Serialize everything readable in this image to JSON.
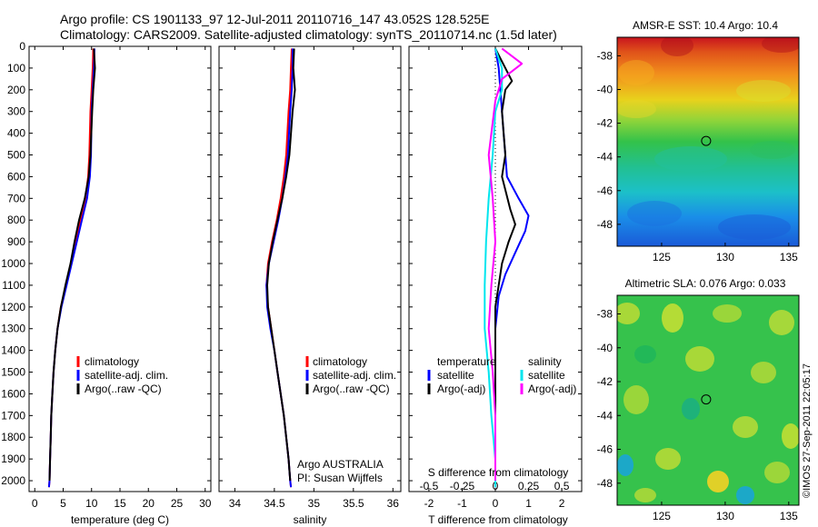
{
  "header": {
    "line1": "Argo profile: CS 1901133_97 12-Jul-2011 20110716_147 43.052S 128.525E",
    "line2": "Climatology: CARS2009. Satellite-adjusted climatology: synTS_20110714.nc (1.5d later)"
  },
  "credit": "©IMOS 27-Sep-2011 22:05:17",
  "colors": {
    "climatology": "#ff0000",
    "satellite": "#0000ff",
    "argo": "#000000",
    "sal_satellite": "#00e5ee",
    "sal_argo": "#ff00ff"
  },
  "chart_data": [
    {
      "type": "line",
      "panel": "temperature",
      "xlabel": "temperature (deg C)",
      "ylabel": "",
      "xlim": [
        -1,
        31
      ],
      "ylim": [
        2050,
        0
      ],
      "xticks": [
        "0",
        "5",
        "10",
        "15",
        "20",
        "25",
        "30"
      ],
      "xtick_values": [
        0,
        5,
        10,
        15,
        20,
        25,
        30
      ],
      "yticks": [
        "0",
        "100",
        "200",
        "300",
        "400",
        "500",
        "600",
        "700",
        "800",
        "900",
        "1000",
        "1100",
        "1200",
        "1300",
        "1400",
        "1500",
        "1600",
        "1700",
        "1800",
        "1900",
        "2000"
      ],
      "ytick_values": [
        0,
        100,
        200,
        300,
        400,
        500,
        600,
        700,
        800,
        900,
        1000,
        1100,
        1200,
        1300,
        1400,
        1500,
        1600,
        1700,
        1800,
        1900,
        2000
      ],
      "legend": [
        {
          "label": "climatology",
          "color": "#ff0000"
        },
        {
          "label": "satellite-adj. clim.",
          "color": "#0000ff"
        },
        {
          "label": "Argo(..raw -QC)",
          "color": "#000000"
        }
      ],
      "series": [
        {
          "name": "climatology",
          "color": "#ff0000",
          "points": [
            [
              10.3,
              10
            ],
            [
              10.2,
              100
            ],
            [
              10.0,
              200
            ],
            [
              9.8,
              300
            ],
            [
              9.6,
              500
            ],
            [
              9.4,
              600
            ],
            [
              8.9,
              700
            ],
            [
              8.0,
              800
            ],
            [
              7.2,
              900
            ],
            [
              6.4,
              1000
            ],
            [
              5.5,
              1100
            ],
            [
              4.6,
              1200
            ],
            [
              4.0,
              1300
            ],
            [
              3.6,
              1400
            ],
            [
              3.3,
              1500
            ],
            [
              3.1,
              1600
            ],
            [
              2.9,
              1700
            ],
            [
              2.8,
              1800
            ],
            [
              2.7,
              1900
            ],
            [
              2.6,
              2000
            ],
            [
              2.5,
              2030
            ]
          ]
        },
        {
          "name": "satellite-adj. clim.",
          "color": "#0000ff",
          "points": [
            [
              10.5,
              10
            ],
            [
              10.4,
              100
            ],
            [
              10.2,
              200
            ],
            [
              10.0,
              300
            ],
            [
              9.9,
              500
            ],
            [
              9.7,
              600
            ],
            [
              9.2,
              700
            ],
            [
              8.3,
              800
            ],
            [
              7.4,
              900
            ],
            [
              6.5,
              1000
            ],
            [
              5.6,
              1100
            ],
            [
              4.7,
              1200
            ],
            [
              4.0,
              1300
            ],
            [
              3.6,
              1400
            ],
            [
              3.3,
              1500
            ],
            [
              3.1,
              1600
            ],
            [
              2.9,
              1700
            ],
            [
              2.8,
              1800
            ],
            [
              2.7,
              1900
            ],
            [
              2.6,
              2000
            ],
            [
              2.5,
              2030
            ]
          ]
        },
        {
          "name": "Argo(..raw -QC)",
          "color": "#000000",
          "points": [
            [
              10.4,
              10
            ],
            [
              10.6,
              100
            ],
            [
              10.3,
              200
            ],
            [
              10.1,
              300
            ],
            [
              9.8,
              500
            ],
            [
              9.5,
              600
            ],
            [
              8.8,
              700
            ],
            [
              7.8,
              800
            ],
            [
              7.0,
              900
            ],
            [
              6.3,
              1000
            ],
            [
              5.4,
              1100
            ],
            [
              4.6,
              1200
            ],
            [
              4.0,
              1300
            ],
            [
              3.6,
              1400
            ],
            [
              3.3,
              1500
            ],
            [
              3.1,
              1600
            ],
            [
              2.9,
              1700
            ],
            [
              2.8,
              1800
            ],
            [
              2.7,
              1900
            ],
            [
              2.6,
              2000
            ]
          ]
        }
      ]
    },
    {
      "type": "line",
      "panel": "salinity",
      "xlabel": "salinity",
      "ylabel": "",
      "xlim": [
        33.8,
        36.1
      ],
      "ylim": [
        2050,
        0
      ],
      "xticks": [
        "34",
        "34.5",
        "35",
        "35.5",
        "36"
      ],
      "xtick_values": [
        34,
        34.5,
        35,
        35.5,
        36
      ],
      "legend": [
        {
          "label": "climatology",
          "color": "#ff0000"
        },
        {
          "label": "satellite-adj. clim.",
          "color": "#0000ff"
        },
        {
          "label": "Argo(..raw -QC)",
          "color": "#000000"
        }
      ],
      "annotation": [
        "Argo AUSTRALIA",
        "PI: Susan Wijffels"
      ],
      "series": [
        {
          "name": "climatology",
          "color": "#ff0000",
          "points": [
            [
              34.72,
              10
            ],
            [
              34.71,
              100
            ],
            [
              34.7,
              200
            ],
            [
              34.68,
              300
            ],
            [
              34.65,
              500
            ],
            [
              34.62,
              600
            ],
            [
              34.58,
              700
            ],
            [
              34.53,
              800
            ],
            [
              34.47,
              900
            ],
            [
              34.42,
              1000
            ],
            [
              34.4,
              1100
            ],
            [
              34.42,
              1200
            ],
            [
              34.46,
              1300
            ],
            [
              34.5,
              1400
            ],
            [
              34.54,
              1500
            ],
            [
              34.58,
              1600
            ],
            [
              34.62,
              1700
            ],
            [
              34.65,
              1800
            ],
            [
              34.68,
              1900
            ],
            [
              34.7,
              2000
            ],
            [
              34.71,
              2030
            ]
          ]
        },
        {
          "name": "satellite-adj. clim.",
          "color": "#0000ff",
          "points": [
            [
              34.73,
              10
            ],
            [
              34.73,
              100
            ],
            [
              34.72,
              200
            ],
            [
              34.7,
              300
            ],
            [
              34.67,
              500
            ],
            [
              34.64,
              600
            ],
            [
              34.6,
              700
            ],
            [
              34.55,
              800
            ],
            [
              34.49,
              900
            ],
            [
              34.43,
              1000
            ],
            [
              34.4,
              1100
            ],
            [
              34.41,
              1200
            ],
            [
              34.45,
              1300
            ],
            [
              34.5,
              1400
            ],
            [
              34.54,
              1500
            ],
            [
              34.58,
              1600
            ],
            [
              34.62,
              1700
            ],
            [
              34.65,
              1800
            ],
            [
              34.68,
              1900
            ],
            [
              34.7,
              2000
            ],
            [
              34.71,
              2030
            ]
          ]
        },
        {
          "name": "Argo(..raw -QC)",
          "color": "#000000",
          "points": [
            [
              34.75,
              10
            ],
            [
              34.74,
              100
            ],
            [
              34.76,
              200
            ],
            [
              34.73,
              300
            ],
            [
              34.69,
              500
            ],
            [
              34.65,
              600
            ],
            [
              34.6,
              700
            ],
            [
              34.54,
              800
            ],
            [
              34.48,
              900
            ],
            [
              34.43,
              1000
            ],
            [
              34.41,
              1100
            ],
            [
              34.42,
              1200
            ],
            [
              34.46,
              1300
            ],
            [
              34.5,
              1400
            ],
            [
              34.54,
              1500
            ],
            [
              34.58,
              1600
            ],
            [
              34.62,
              1700
            ],
            [
              34.65,
              1800
            ],
            [
              34.68,
              1900
            ],
            [
              34.7,
              2000
            ]
          ]
        }
      ]
    },
    {
      "type": "line",
      "panel": "difference",
      "xlabel": "T difference from climatology",
      "x2label": "S difference from climatology",
      "xlim": [
        -2.6,
        2.6
      ],
      "ylim": [
        2050,
        0
      ],
      "xticks": [
        "-2",
        "-1",
        "0",
        "1",
        "2"
      ],
      "xtick_values": [
        -2,
        -1,
        0,
        1,
        2
      ],
      "x2ticks": [
        "-0.5",
        "-0.25",
        "0",
        "0.25",
        "0.5"
      ],
      "x2tick_values": [
        -0.5,
        -0.25,
        0,
        0.25,
        0.5
      ],
      "legend_headers": [
        "temperature",
        "salinity"
      ],
      "legend": [
        {
          "label": "satellite",
          "color": "#0000ff",
          "column": 0
        },
        {
          "label": "Argo(-adj)",
          "color": "#000000",
          "column": 0
        },
        {
          "label": "satellite",
          "color": "#00e5ee",
          "column": 1
        },
        {
          "label": "Argo(-adj)",
          "color": "#ff00ff",
          "column": 1
        }
      ],
      "series": [
        {
          "name": "temperature satellite",
          "color": "#0000ff",
          "points": [
            [
              0.0,
              10
            ],
            [
              0.1,
              100
            ],
            [
              0.15,
              200
            ],
            [
              0.2,
              300
            ],
            [
              0.25,
              400
            ],
            [
              0.3,
              500
            ],
            [
              0.35,
              600
            ],
            [
              0.7,
              700
            ],
            [
              1.0,
              780
            ],
            [
              0.9,
              850
            ],
            [
              0.6,
              950
            ],
            [
              0.3,
              1050
            ],
            [
              0.1,
              1150
            ],
            [
              0.0,
              1300
            ],
            [
              0.0,
              2030
            ]
          ]
        },
        {
          "name": "temperature Argo(-adj)",
          "color": "#000000",
          "points": [
            [
              0.0,
              10
            ],
            [
              0.3,
              100
            ],
            [
              0.5,
              160
            ],
            [
              0.3,
              200
            ],
            [
              0.2,
              300
            ],
            [
              0.25,
              400
            ],
            [
              0.3,
              500
            ],
            [
              0.2,
              600
            ],
            [
              0.45,
              750
            ],
            [
              0.6,
              820
            ],
            [
              0.4,
              900
            ],
            [
              0.2,
              1000
            ],
            [
              0.1,
              1100
            ],
            [
              0.0,
              1200
            ],
            [
              0.0,
              2000
            ]
          ]
        },
        {
          "name": "salinity satellite",
          "color": "#00e5ee",
          "points": [
            [
              0.0,
              10
            ],
            [
              0.05,
              100
            ],
            [
              0.05,
              200
            ],
            [
              0.0,
              300
            ],
            [
              -0.02,
              500
            ],
            [
              -0.05,
              700
            ],
            [
              -0.07,
              900
            ],
            [
              -0.08,
              1100
            ],
            [
              -0.08,
              1300
            ],
            [
              -0.05,
              1500
            ],
            [
              -0.03,
              1700
            ],
            [
              0.0,
              1900
            ],
            [
              0.0,
              2030
            ]
          ]
        },
        {
          "name": "salinity Argo(-adj)",
          "color": "#ff00ff",
          "points": [
            [
              0.05,
              10
            ],
            [
              0.2,
              80
            ],
            [
              0.05,
              150
            ],
            [
              0.0,
              250
            ],
            [
              -0.05,
              500
            ],
            [
              -0.02,
              700
            ],
            [
              0.0,
              900
            ],
            [
              -0.03,
              1100
            ],
            [
              -0.05,
              1300
            ],
            [
              -0.02,
              1500
            ],
            [
              0.0,
              1700
            ],
            [
              0.0,
              2000
            ]
          ]
        }
      ]
    },
    {
      "type": "heatmap",
      "panel": "sst_map",
      "title": "AMSR-E SST: 10.4 Argo: 10.4",
      "xlim": [
        121.5,
        135.8
      ],
      "ylim": [
        -49.3,
        -36.9
      ],
      "xticks": [
        "125",
        "130",
        "135"
      ],
      "xtick_values": [
        125,
        130,
        135
      ],
      "yticks": [
        "-38",
        "-40",
        "-42",
        "-44",
        "-46",
        "-48"
      ],
      "ytick_values": [
        -38,
        -40,
        -42,
        -44,
        -46,
        -48
      ],
      "marker": {
        "lon": 128.5,
        "lat": -43.05
      },
      "description_levels": [
        "red",
        "orange",
        "yellow",
        "green",
        "cyan",
        "blue"
      ]
    },
    {
      "type": "heatmap",
      "panel": "sla_map",
      "title": "Altimetric SLA: 0.076 Argo: 0.033",
      "xlim": [
        121.5,
        135.8
      ],
      "ylim": [
        -49.3,
        -36.9
      ],
      "xticks": [
        "125",
        "130",
        "135"
      ],
      "xtick_values": [
        125,
        130,
        135
      ],
      "yticks": [
        "-38",
        "-40",
        "-42",
        "-44",
        "-46",
        "-48"
      ],
      "ytick_values": [
        -38,
        -40,
        -42,
        -44,
        -46,
        -48
      ],
      "marker": {
        "lon": 128.5,
        "lat": -43.05
      }
    }
  ]
}
